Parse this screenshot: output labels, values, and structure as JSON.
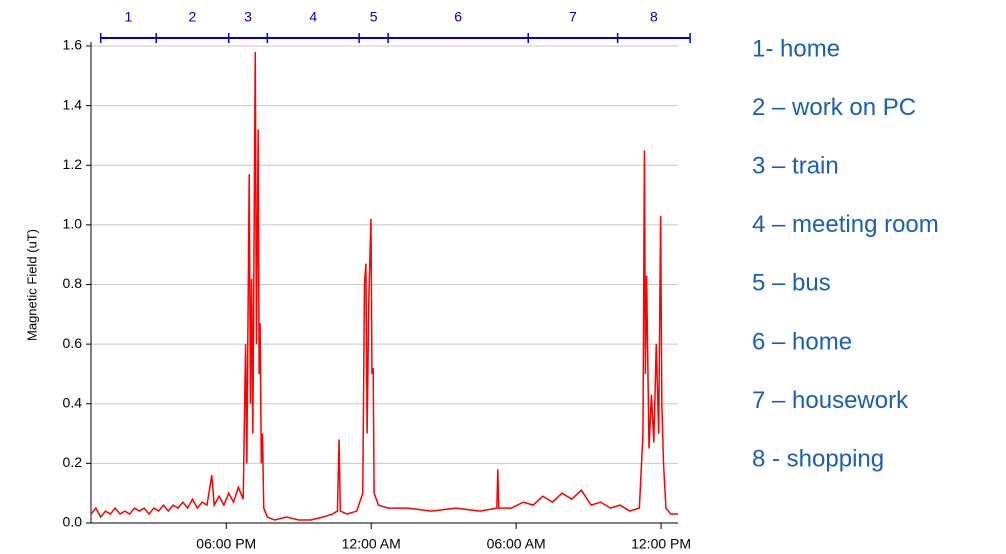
{
  "chart_data": {
    "type": "line",
    "y_label": "Magnetic Field (uT)",
    "x": [
      12.4,
      12.6,
      12.8,
      13.0,
      13.2,
      13.4,
      13.6,
      13.8,
      14.0,
      14.2,
      14.4,
      14.6,
      14.8,
      15.0,
      15.2,
      15.4,
      15.6,
      15.8,
      16.0,
      16.2,
      16.4,
      16.6,
      16.8,
      17.0,
      17.2,
      17.4,
      17.5,
      17.7,
      17.9,
      18.1,
      18.3,
      18.5,
      18.7,
      18.8,
      18.85,
      18.95,
      19.0,
      19.05,
      19.1,
      19.2,
      19.25,
      19.32,
      19.36,
      19.4,
      19.45,
      19.5,
      19.55,
      19.7,
      20.0,
      20.5,
      21.0,
      21.5,
      22.0,
      22.4,
      22.6,
      22.67,
      22.72,
      23.0,
      23.4,
      23.65,
      23.72,
      23.78,
      23.83,
      23.9,
      23.99,
      24.03,
      24.08,
      24.12,
      24.3,
      24.7,
      25.5,
      26.5,
      27.5,
      28.5,
      29.2,
      29.24,
      29.28,
      29.8,
      30.3,
      30.7,
      31.1,
      31.5,
      31.9,
      32.3,
      32.7,
      33.1,
      33.5,
      33.9,
      34.3,
      34.7,
      35.1,
      35.25,
      35.31,
      35.35,
      35.4,
      35.5,
      35.6,
      35.7,
      35.8,
      35.9,
      35.98,
      36.03,
      36.1,
      36.2,
      36.4,
      36.7
    ],
    "series": [
      {
        "color": "#ff0000",
        "values": [
          0.03,
          0.05,
          0.02,
          0.04,
          0.03,
          0.05,
          0.03,
          0.04,
          0.03,
          0.05,
          0.04,
          0.05,
          0.03,
          0.05,
          0.04,
          0.06,
          0.04,
          0.06,
          0.05,
          0.07,
          0.05,
          0.08,
          0.05,
          0.07,
          0.06,
          0.16,
          0.06,
          0.09,
          0.06,
          0.1,
          0.07,
          0.12,
          0.08,
          0.6,
          0.2,
          1.17,
          0.4,
          0.82,
          0.3,
          1.58,
          0.6,
          1.32,
          0.5,
          0.67,
          0.2,
          0.3,
          0.05,
          0.02,
          0.01,
          0.02,
          0.01,
          0.01,
          0.02,
          0.03,
          0.04,
          0.28,
          0.04,
          0.03,
          0.04,
          0.1,
          0.8,
          0.87,
          0.3,
          0.75,
          1.02,
          0.5,
          0.52,
          0.1,
          0.06,
          0.05,
          0.05,
          0.04,
          0.05,
          0.04,
          0.05,
          0.18,
          0.05,
          0.05,
          0.07,
          0.06,
          0.09,
          0.07,
          0.1,
          0.08,
          0.11,
          0.06,
          0.07,
          0.05,
          0.06,
          0.04,
          0.05,
          0.3,
          1.25,
          0.5,
          0.83,
          0.25,
          0.43,
          0.27,
          0.6,
          0.3,
          1.03,
          0.4,
          0.2,
          0.05,
          0.03,
          0.03
        ]
      }
    ],
    "xlim": [
      12.4,
      36.7
    ],
    "xticks": [
      {
        "value": 18,
        "label": "06:00 PM"
      },
      {
        "value": 24,
        "label": "12:00 AM"
      },
      {
        "value": 30,
        "label": "06:00 AM"
      },
      {
        "value": 36,
        "label": "12:00 PM"
      }
    ],
    "ylim": [
      0,
      1.6
    ],
    "yticks": [
      {
        "value": 0,
        "label": "0.0"
      },
      0.2,
      0.4,
      0.6,
      0.8,
      {
        "value": 1,
        "label": "1.0"
      },
      1.2,
      1.4,
      1.6
    ],
    "grid": true,
    "segments": {
      "color": "#0000cc",
      "labels": [
        "1",
        "2",
        "3",
        "4",
        "5",
        "6",
        "7",
        "8"
      ],
      "bounds": [
        12.8,
        15.1,
        18.1,
        19.7,
        23.5,
        24.7,
        30.5,
        34.2,
        37.2
      ]
    },
    "annotations": [
      "1- home",
      "2 – work on PC",
      "3 – train",
      "4 – meeting room",
      "5 – bus",
      "6 – home",
      "7 – housework",
      "8 - shopping"
    ],
    "annotation_color": "#1a5fb4"
  }
}
